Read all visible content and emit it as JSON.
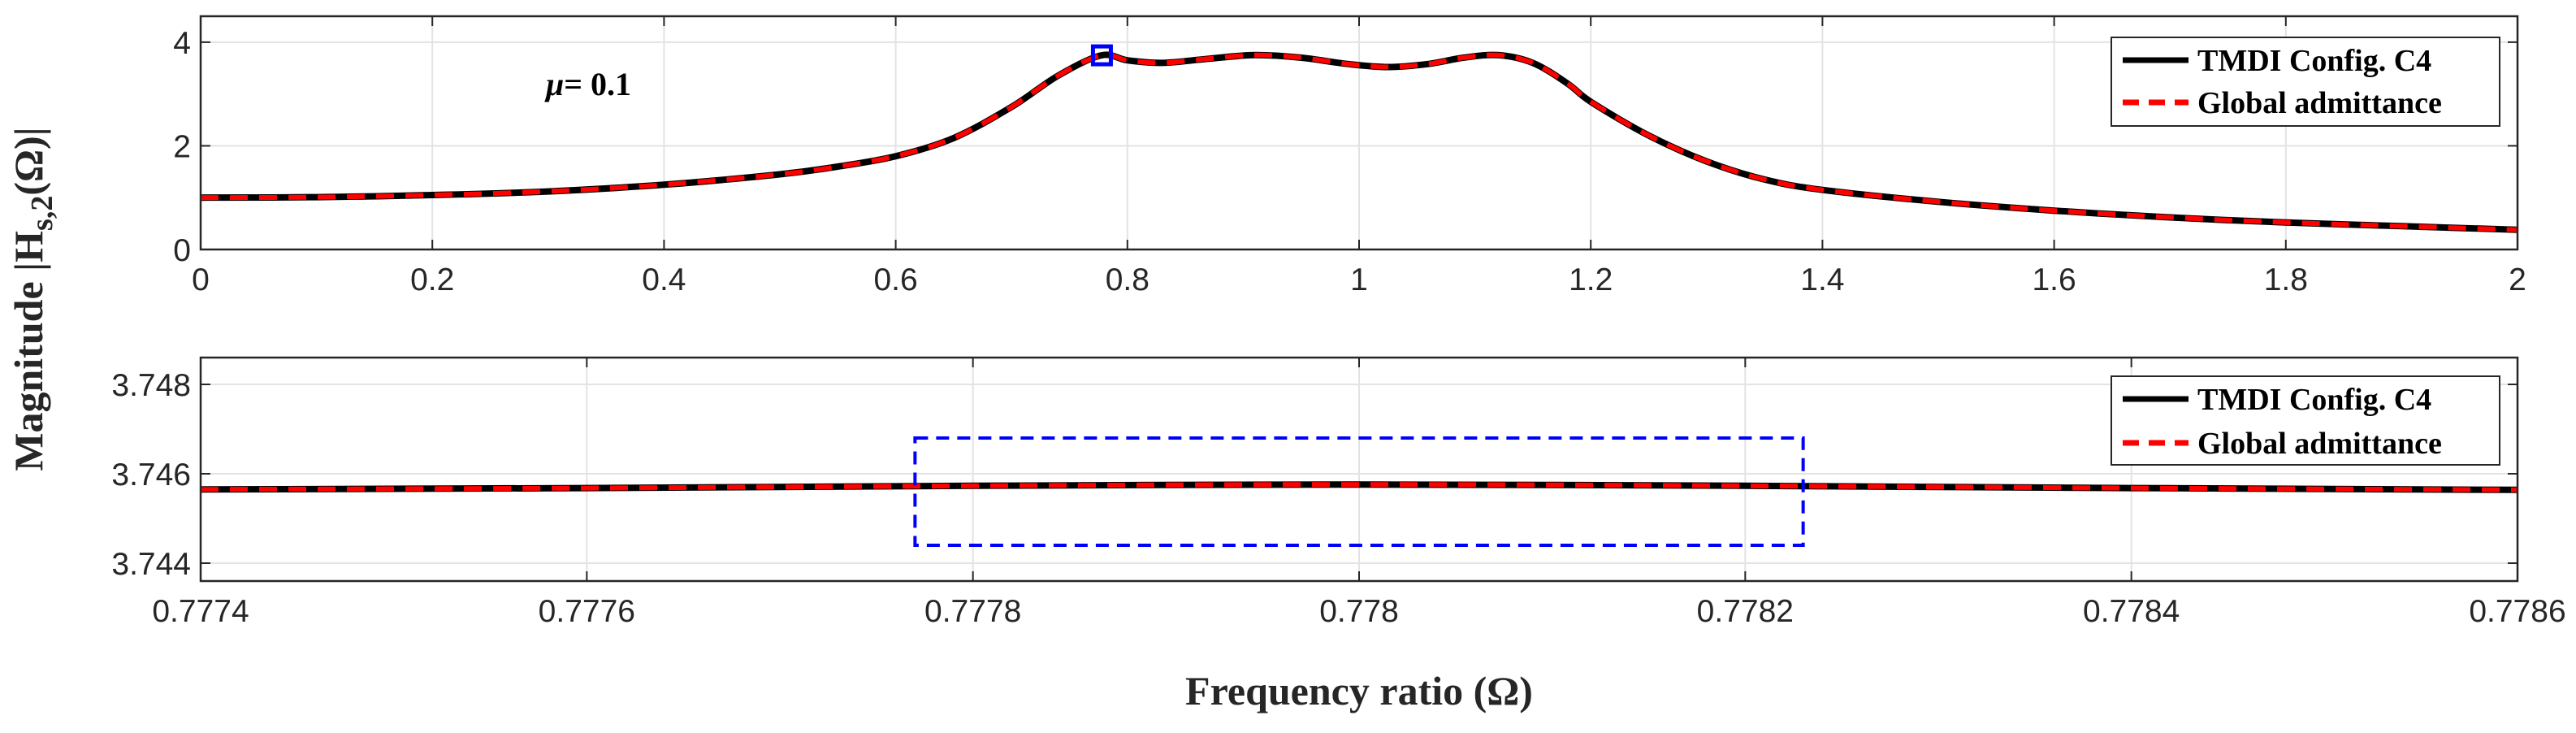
{
  "chart_data": [
    {
      "type": "line",
      "panel": "top",
      "xlim": [
        0,
        2
      ],
      "ylim": [
        0,
        4.5
      ],
      "x_ticks": [
        "0",
        "0.2",
        "0.4",
        "0.6",
        "0.8",
        "1",
        "1.2",
        "1.4",
        "1.6",
        "1.8",
        "2"
      ],
      "y_ticks": [
        "0",
        "2",
        "4"
      ],
      "annotation": {
        "symbol": "μ",
        "text": "= 0.1"
      },
      "series": [
        {
          "name": "TMDI Config. C4",
          "color": "#000000",
          "style": "solid",
          "x": [
            0,
            0.1,
            0.2,
            0.3,
            0.4,
            0.5,
            0.55,
            0.6,
            0.65,
            0.7,
            0.74,
            0.7774,
            0.8,
            0.83,
            0.87,
            0.91,
            0.95,
            0.99,
            1.025,
            1.06,
            1.09,
            1.12,
            1.15,
            1.18,
            1.2,
            1.25,
            1.3,
            1.35,
            1.4,
            1.5,
            1.6,
            1.7,
            1.8,
            1.9,
            2.0
          ],
          "y": [
            1.0,
            1.01,
            1.05,
            1.12,
            1.25,
            1.45,
            1.6,
            1.8,
            2.15,
            2.75,
            3.35,
            3.746,
            3.65,
            3.6,
            3.68,
            3.75,
            3.7,
            3.58,
            3.52,
            3.58,
            3.7,
            3.75,
            3.6,
            3.2,
            2.85,
            2.2,
            1.7,
            1.35,
            1.15,
            0.92,
            0.75,
            0.62,
            0.52,
            0.45,
            0.38
          ]
        },
        {
          "name": "Global admittance",
          "color": "#ff0000",
          "style": "dashed",
          "x": [
            0,
            0.1,
            0.2,
            0.3,
            0.4,
            0.5,
            0.55,
            0.6,
            0.65,
            0.7,
            0.74,
            0.7774,
            0.8,
            0.83,
            0.87,
            0.91,
            0.95,
            0.99,
            1.025,
            1.06,
            1.09,
            1.12,
            1.15,
            1.18,
            1.2,
            1.25,
            1.3,
            1.35,
            1.4,
            1.5,
            1.6,
            1.7,
            1.8,
            1.9,
            2.0
          ],
          "y": [
            1.0,
            1.01,
            1.05,
            1.12,
            1.25,
            1.45,
            1.6,
            1.8,
            2.15,
            2.75,
            3.35,
            3.746,
            3.65,
            3.6,
            3.68,
            3.75,
            3.7,
            3.58,
            3.52,
            3.58,
            3.7,
            3.75,
            3.6,
            3.2,
            2.85,
            2.2,
            1.7,
            1.35,
            1.15,
            0.92,
            0.75,
            0.62,
            0.52,
            0.45,
            0.38
          ]
        }
      ],
      "marker": {
        "x": 0.778,
        "y": 3.746,
        "shape": "square",
        "color": "#0000ff"
      },
      "legend": "top-right"
    },
    {
      "type": "line",
      "panel": "bottom",
      "xlim": [
        0.7774,
        0.7786
      ],
      "ylim": [
        3.7436,
        3.7486
      ],
      "x_ticks": [
        "0.7774",
        "0.7776",
        "0.7778",
        "0.778",
        "0.7782",
        "0.7784",
        "0.7786"
      ],
      "y_ticks": [
        "3.744",
        "3.746",
        "3.748"
      ],
      "series": [
        {
          "name": "TMDI Config. C4",
          "color": "#000000",
          "style": "solid",
          "x": [
            0.7774,
            0.7776,
            0.7778,
            0.778,
            0.7782,
            0.7784,
            0.7786
          ],
          "y": [
            3.74565,
            3.74568,
            3.74573,
            3.74576,
            3.74573,
            3.74568,
            3.74564
          ]
        },
        {
          "name": "Global admittance",
          "color": "#ff0000",
          "style": "dashed",
          "x": [
            0.7774,
            0.7776,
            0.7778,
            0.778,
            0.7782,
            0.7784,
            0.7786
          ],
          "y": [
            3.74565,
            3.74568,
            3.74573,
            3.74576,
            3.74573,
            3.74568,
            3.74564
          ]
        }
      ],
      "zoom_box": {
        "x": [
          0.77777,
          0.77823
        ],
        "y": [
          3.7444,
          3.7468
        ],
        "color": "#0000ff",
        "style": "dashed"
      },
      "legend": "top-right"
    }
  ],
  "ylabel": {
    "main": "Magnitude |H",
    "sub": "s,2",
    "tail": "(Ω)|"
  },
  "xlabel": "Frequency ratio (Ω)"
}
